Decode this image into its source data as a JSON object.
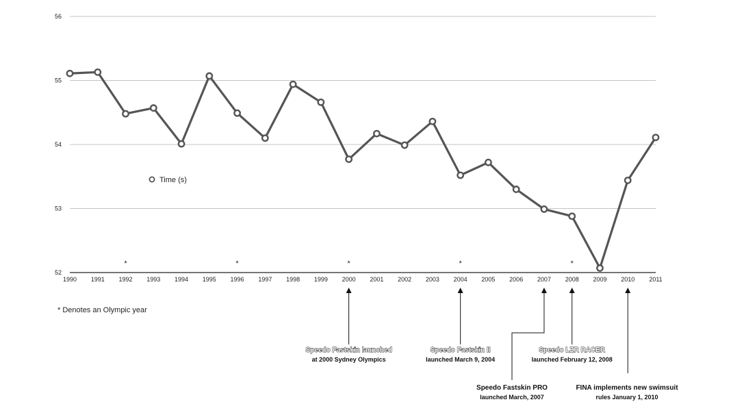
{
  "chart_data": {
    "type": "line",
    "title": "",
    "xlabel": "",
    "ylabel": "",
    "ylim": [
      52,
      56
    ],
    "yticks": [
      "52",
      "53",
      "54",
      "55",
      "56"
    ],
    "x": [
      "1990",
      "1991",
      "1992",
      "1993",
      "1994",
      "1995",
      "1996",
      "1997",
      "1998",
      "1999",
      "2000",
      "2001",
      "2002",
      "2003",
      "2004",
      "2005",
      "2006",
      "2007",
      "2008",
      "2009",
      "2010",
      "2011"
    ],
    "series": [
      {
        "name": "Time (s)",
        "color": "#555555",
        "values": [
          55.11,
          55.13,
          54.48,
          54.57,
          54.01,
          55.07,
          54.49,
          54.1,
          54.94,
          54.66,
          53.77,
          54.17,
          53.99,
          54.36,
          53.52,
          53.72,
          53.3,
          52.99,
          52.88,
          52.07,
          53.44,
          54.11
        ]
      }
    ],
    "olympic_years": [
      "1992",
      "1996",
      "2000",
      "2004",
      "2008"
    ],
    "olympic_marker": "*",
    "legend": {
      "label": "Time (s)",
      "placement": "center-left"
    },
    "grid": true,
    "footnote": "* Denotes an Olympic year",
    "annotations": [
      {
        "year": "2000",
        "title": "Speedo Fastskin launched",
        "subtitle": "at 2000 Sydney Olympics",
        "title_style": "outline"
      },
      {
        "year": "2004",
        "title": "Speedo Fastskin II",
        "subtitle": "launched March 9, 2004",
        "title_style": "outline"
      },
      {
        "year": "2008",
        "title": "Speedo LZR RACER",
        "subtitle": "launched February 12, 2008",
        "title_style": "outline"
      },
      {
        "year": "2007",
        "title": "Speedo Fastskin PRO",
        "subtitle": "launched March, 2007",
        "title_style": "plain"
      },
      {
        "year": "2010",
        "title": "FINA implements new swimsuit",
        "subtitle": "rules January 1, 2010",
        "title_style": "plain"
      }
    ]
  }
}
